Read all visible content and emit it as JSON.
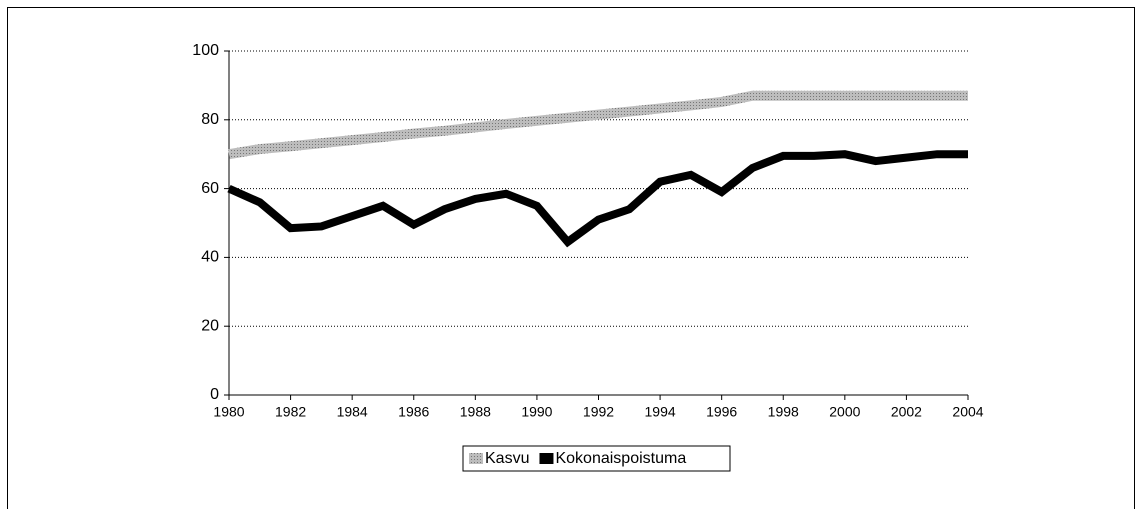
{
  "chart_data": {
    "type": "line",
    "x": [
      1980,
      1981,
      1982,
      1983,
      1984,
      1985,
      1986,
      1987,
      1988,
      1989,
      1990,
      1991,
      1992,
      1993,
      1994,
      1995,
      1996,
      1997,
      1998,
      1999,
      2000,
      2001,
      2002,
      2003,
      2004
    ],
    "series": [
      {
        "name": "Kasvu",
        "color": "#a8a8a8",
        "values": [
          70,
          71.5,
          72.3,
          73.2,
          74.1,
          75,
          76,
          76.8,
          77.8,
          78.8,
          79.7,
          80.6,
          81.5,
          82.4,
          83.3,
          84.2,
          85.2,
          87,
          87,
          87,
          87,
          87,
          87,
          87,
          87
        ]
      },
      {
        "name": "Kokonaispoistuma",
        "color": "#000000",
        "values": [
          60,
          56,
          48.5,
          49,
          52,
          55,
          49.5,
          54,
          57,
          58.5,
          55,
          44.5,
          51,
          54,
          62,
          64,
          59,
          66,
          69.5,
          69.5,
          70,
          68,
          69,
          70,
          70
        ]
      }
    ],
    "xlim": [
      1980,
      2004
    ],
    "xticks": [
      1980,
      1982,
      1984,
      1986,
      1988,
      1990,
      1992,
      1994,
      1996,
      1998,
      2000,
      2002,
      2004
    ],
    "ylim": [
      0,
      100
    ],
    "yticks": [
      0,
      20,
      40,
      60,
      80,
      100
    ],
    "grid": true,
    "legend": "bottom"
  }
}
